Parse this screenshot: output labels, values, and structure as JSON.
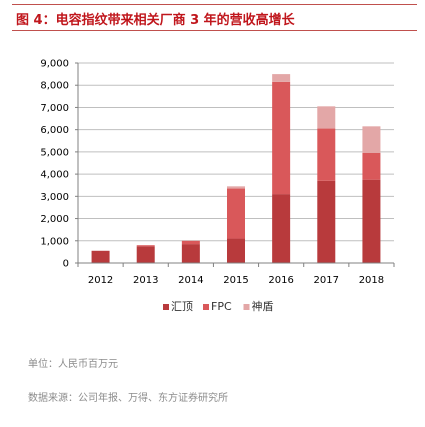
{
  "header": {
    "title": "图 4：电容指纹带来相关厂商 3 年的营收高增长"
  },
  "footer": {
    "unit_label": "单位：人民币百万元",
    "source_label": "数据来源：公司年报、万得、东方证券研究所"
  },
  "chart_data": {
    "type": "bar",
    "stacked": true,
    "categories": [
      "2012",
      "2013",
      "2014",
      "2015",
      "2016",
      "2017",
      "2018"
    ],
    "series": [
      {
        "name": "汇顶",
        "color": "#b83a3c",
        "values": [
          550,
          750,
          850,
          1100,
          3100,
          3700,
          3750
        ]
      },
      {
        "name": "FPC",
        "color": "#d9585a",
        "values": [
          0,
          50,
          150,
          2250,
          5050,
          2350,
          1200
        ]
      },
      {
        "name": "神盾",
        "color": "#e3a7a7",
        "values": [
          0,
          0,
          0,
          100,
          350,
          1000,
          1200
        ]
      }
    ],
    "yticks": [
      "0",
      "1,000",
      "2,000",
      "3,000",
      "4,000",
      "5,000",
      "6,000",
      "7,000",
      "8,000",
      "9,000"
    ],
    "ylim": [
      0,
      9000
    ],
    "grid": true,
    "legend_position": "bottom"
  }
}
